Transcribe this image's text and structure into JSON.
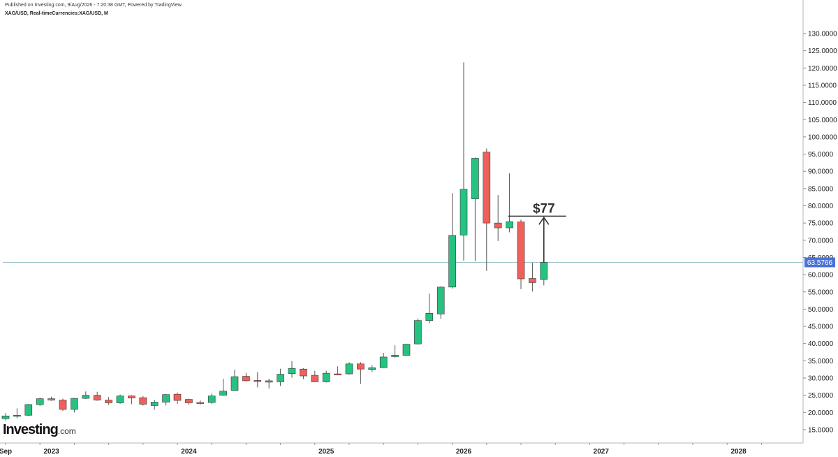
{
  "header": {
    "published": "Published on Investing.com, 9/Aug/2026 - 7:20:38 GMT, Powered by TradingView.",
    "symbol": "XAG/USD, Real-timeCurrencies:XAG/USD, M"
  },
  "logo": {
    "name": "Investing",
    "suffix": ".com"
  },
  "colors": {
    "up": "#26c281",
    "down": "#f0605a",
    "wick": "#555555",
    "last_price_label": "#4a72d8",
    "last_price_line": "#9ec3c8"
  },
  "chart_data": {
    "type": "candlestick",
    "title": "",
    "interval": "M",
    "ylim": [
      12.5,
      132.5
    ],
    "y_ticks": [
      15,
      20,
      25,
      30,
      35,
      40,
      45,
      50,
      55,
      60,
      65,
      70,
      75,
      80,
      85,
      90,
      95,
      100,
      105,
      110,
      115,
      120,
      125,
      130
    ],
    "y_tick_labels": [
      "15.0000",
      "20.0000",
      "25.0000",
      "30.0000",
      "35.0000",
      "40.0000",
      "45.0000",
      "50.0000",
      "55.0000",
      "60.0000",
      "65.0000",
      "70.0000",
      "75.0000",
      "80.0000",
      "85.0000",
      "90.0000",
      "95.0000",
      "100.0000",
      "105.0000",
      "110.0000",
      "115.0000",
      "120.0000",
      "125.0000",
      "130.0000"
    ],
    "x_labels": [
      {
        "label": "Sep",
        "month": "2022-09"
      },
      {
        "label": "2023",
        "month": "2023-01"
      },
      {
        "label": "2024",
        "month": "2024-01"
      },
      {
        "label": "2025",
        "month": "2025-01"
      },
      {
        "label": "2026",
        "month": "2026-01"
      },
      {
        "label": "2027",
        "month": "2027-01"
      },
      {
        "label": "2028",
        "month": "2028-01"
      }
    ],
    "x_start_month": "2022-09",
    "x_end_month": "2028-05",
    "last_price": 63.5766,
    "last_price_label": "63.5766",
    "annotation": {
      "label": "$77",
      "value": 77
    },
    "candles": [
      {
        "month": "2022-09",
        "o": 18.2,
        "h": 19.8,
        "l": 17.7,
        "c": 19.0
      },
      {
        "month": "2022-10",
        "o": 19.0,
        "h": 21.2,
        "l": 18.3,
        "c": 19.2
      },
      {
        "month": "2022-11",
        "o": 19.2,
        "h": 22.5,
        "l": 19.0,
        "c": 22.3
      },
      {
        "month": "2022-12",
        "o": 22.3,
        "h": 24.3,
        "l": 21.9,
        "c": 24.0
      },
      {
        "month": "2023-01",
        "o": 24.0,
        "h": 24.6,
        "l": 23.4,
        "c": 23.6
      },
      {
        "month": "2023-02",
        "o": 23.6,
        "h": 24.0,
        "l": 20.5,
        "c": 20.9
      },
      {
        "month": "2023-03",
        "o": 20.9,
        "h": 24.2,
        "l": 20.0,
        "c": 24.1
      },
      {
        "month": "2023-04",
        "o": 24.1,
        "h": 26.1,
        "l": 23.9,
        "c": 25.0
      },
      {
        "month": "2023-05",
        "o": 25.0,
        "h": 26.0,
        "l": 23.4,
        "c": 23.6
      },
      {
        "month": "2023-06",
        "o": 23.6,
        "h": 24.5,
        "l": 22.2,
        "c": 22.8
      },
      {
        "month": "2023-07",
        "o": 22.8,
        "h": 25.2,
        "l": 22.5,
        "c": 24.8
      },
      {
        "month": "2023-08",
        "o": 24.8,
        "h": 25.0,
        "l": 22.4,
        "c": 24.2
      },
      {
        "month": "2023-09",
        "o": 24.3,
        "h": 24.8,
        "l": 22.0,
        "c": 22.4
      },
      {
        "month": "2023-10",
        "o": 22.0,
        "h": 23.7,
        "l": 20.8,
        "c": 23.0
      },
      {
        "month": "2023-11",
        "o": 23.0,
        "h": 25.4,
        "l": 22.0,
        "c": 25.2
      },
      {
        "month": "2023-12",
        "o": 25.3,
        "h": 25.8,
        "l": 22.5,
        "c": 23.5
      },
      {
        "month": "2024-01",
        "o": 23.8,
        "h": 24.0,
        "l": 22.2,
        "c": 22.8
      },
      {
        "month": "2024-02",
        "o": 22.9,
        "h": 23.5,
        "l": 22.3,
        "c": 22.6
      },
      {
        "month": "2024-03",
        "o": 22.9,
        "h": 25.5,
        "l": 22.5,
        "c": 24.8
      },
      {
        "month": "2024-04",
        "o": 25.0,
        "h": 29.8,
        "l": 24.9,
        "c": 26.2
      },
      {
        "month": "2024-05",
        "o": 26.4,
        "h": 32.4,
        "l": 26.3,
        "c": 30.4
      },
      {
        "month": "2024-06",
        "o": 30.5,
        "h": 31.5,
        "l": 29.0,
        "c": 29.2
      },
      {
        "month": "2024-07",
        "o": 29.3,
        "h": 31.7,
        "l": 27.3,
        "c": 29.0
      },
      {
        "month": "2024-08",
        "o": 28.8,
        "h": 29.8,
        "l": 27.0,
        "c": 29.2
      },
      {
        "month": "2024-09",
        "o": 28.9,
        "h": 32.7,
        "l": 27.7,
        "c": 31.1
      },
      {
        "month": "2024-10",
        "o": 31.3,
        "h": 34.9,
        "l": 30.1,
        "c": 32.8
      },
      {
        "month": "2024-11",
        "o": 32.6,
        "h": 32.9,
        "l": 29.7,
        "c": 30.6
      },
      {
        "month": "2024-12",
        "o": 30.8,
        "h": 32.1,
        "l": 28.8,
        "c": 28.9
      },
      {
        "month": "2025-01",
        "o": 28.9,
        "h": 32.1,
        "l": 28.7,
        "c": 31.4
      },
      {
        "month": "2025-02",
        "o": 31.2,
        "h": 33.4,
        "l": 30.9,
        "c": 31.0
      },
      {
        "month": "2025-03",
        "o": 31.2,
        "h": 34.6,
        "l": 31.0,
        "c": 34.1
      },
      {
        "month": "2025-04",
        "o": 34.1,
        "h": 34.6,
        "l": 28.3,
        "c": 32.6
      },
      {
        "month": "2025-05",
        "o": 32.5,
        "h": 33.7,
        "l": 31.7,
        "c": 33.0
      },
      {
        "month": "2025-06",
        "o": 33.0,
        "h": 37.3,
        "l": 32.9,
        "c": 36.1
      },
      {
        "month": "2025-07",
        "o": 36.2,
        "h": 39.5,
        "l": 35.9,
        "c": 36.6
      },
      {
        "month": "2025-08",
        "o": 36.6,
        "h": 40.0,
        "l": 36.5,
        "c": 39.8
      },
      {
        "month": "2025-09",
        "o": 39.9,
        "h": 47.3,
        "l": 39.7,
        "c": 46.7
      },
      {
        "month": "2025-10",
        "o": 46.7,
        "h": 54.5,
        "l": 45.9,
        "c": 48.8
      },
      {
        "month": "2025-11",
        "o": 48.6,
        "h": 56.6,
        "l": 47.2,
        "c": 56.4
      },
      {
        "month": "2025-12",
        "o": 56.4,
        "h": 83.7,
        "l": 56.0,
        "c": 71.4
      },
      {
        "month": "2026-01",
        "o": 71.5,
        "h": 121.6,
        "l": 64.1,
        "c": 84.8
      },
      {
        "month": "2026-02",
        "o": 82.0,
        "h": 94.0,
        "l": 64.0,
        "c": 93.8
      },
      {
        "month": "2026-03",
        "o": 95.6,
        "h": 96.6,
        "l": 61.1,
        "c": 75.0
      },
      {
        "month": "2026-04",
        "o": 75.0,
        "h": 83.1,
        "l": 69.8,
        "c": 73.6
      },
      {
        "month": "2026-05",
        "o": 73.6,
        "h": 89.4,
        "l": 72.3,
        "c": 75.4
      },
      {
        "month": "2026-06",
        "o": 75.3,
        "h": 76.0,
        "l": 55.8,
        "c": 58.8
      },
      {
        "month": "2026-07",
        "o": 58.9,
        "h": 63.5,
        "l": 55.1,
        "c": 57.7
      },
      {
        "month": "2026-08",
        "o": 58.6,
        "h": 63.6,
        "l": 56.9,
        "c": 63.58
      }
    ]
  }
}
